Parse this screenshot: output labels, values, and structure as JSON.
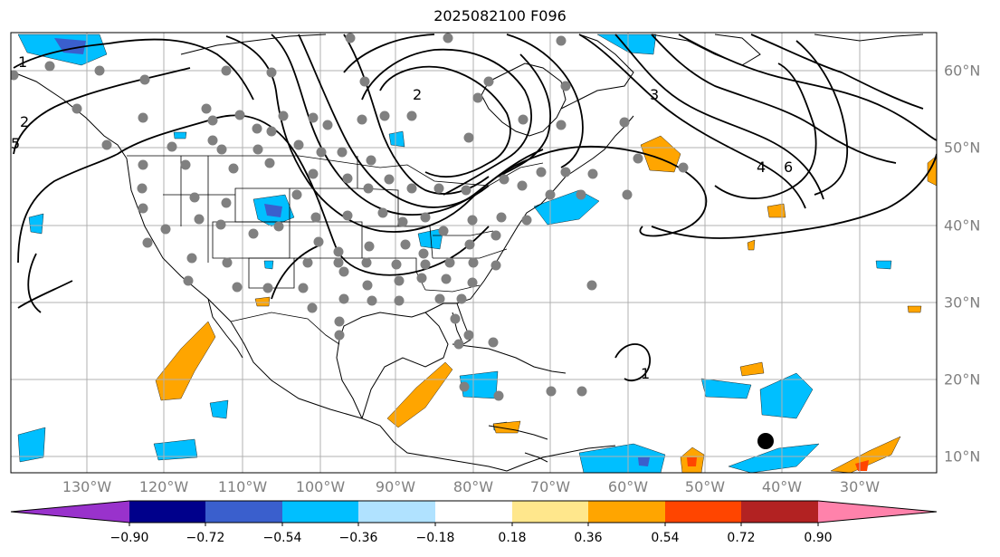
{
  "title": "2025082100 F096",
  "lon_labels": [
    "130°W",
    "120°W",
    "110°W",
    "100°W",
    "90°W",
    "80°W",
    "70°W",
    "60°W",
    "50°W",
    "40°W",
    "30°W"
  ],
  "lat_labels": [
    "60°N",
    "50°N",
    "40°N",
    "30°N",
    "20°N",
    "10°N"
  ],
  "contour_labels": [
    "1",
    "2",
    "5",
    "2",
    "3",
    "4",
    "6",
    "1"
  ],
  "colorbar": {
    "tick_labels": [
      "−0.90",
      "−0.72",
      "−0.54",
      "−0.36",
      "−0.18",
      "0.18",
      "0.36",
      "0.54",
      "0.72",
      "0.90"
    ],
    "colors": [
      "#9932cc",
      "#00008b",
      "#3a5fcd",
      "#00bfff",
      "#b0e2ff",
      "#ffffff",
      "#ffe78c",
      "#ffa500",
      "#ff4500",
      "#b22222",
      "#ff82ab"
    ]
  },
  "colors": {
    "neg_fill": "#00bfff",
    "neg_strong": "#3a5fcd",
    "pos_fill": "#ffa500",
    "pos_strong": "#ff4500",
    "station_dot": "#808080",
    "grid": "#b0b0b0"
  }
}
